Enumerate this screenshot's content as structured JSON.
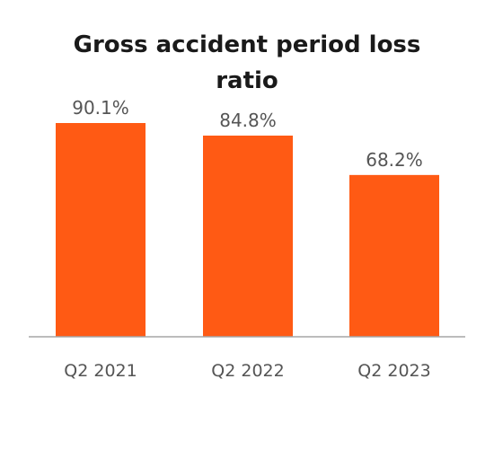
{
  "chart_data": {
    "type": "bar",
    "title": "Gross accident period loss ratio",
    "categories": [
      "Q2 2021",
      "Q2 2022",
      "Q2 2023"
    ],
    "values": [
      90.1,
      84.8,
      68.2
    ],
    "data_labels": [
      "90.1%",
      "84.8%",
      "68.2%"
    ],
    "unit": "%",
    "xlabel": "",
    "ylabel": "",
    "ylim": [
      0,
      100
    ],
    "grid": false,
    "legend": "none",
    "colors": {
      "bar": "#ff5a14",
      "baseline": "#a6a6a6",
      "label": "#555555",
      "title": "#1a1a1a"
    }
  }
}
